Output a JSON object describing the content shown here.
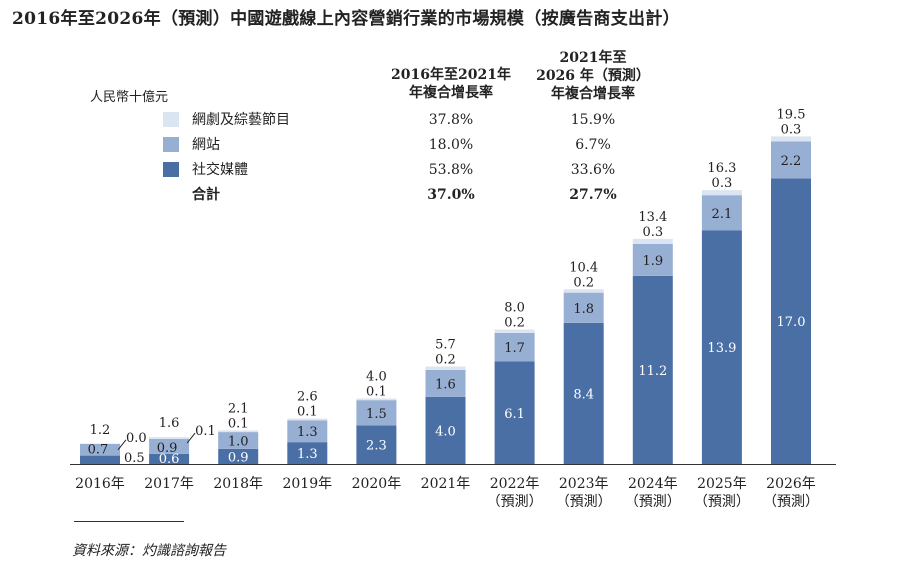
{
  "title": "2016年至2026年（預測）中國遊戲線上內容營銷行業的市場規模（按廣告商支出計）",
  "source": "資料來源：灼識諮詢報告",
  "colors": {
    "social": "#4a6fa5",
    "website": "#98afd4",
    "drama": "#dbe4f1",
    "text_on_dark": "#ffffff",
    "text": "#222222"
  },
  "chart_data": {
    "type": "bar",
    "stacked": true,
    "unit_label": "人民幣十億元",
    "categories": [
      [
        "2016年"
      ],
      [
        "2017年"
      ],
      [
        "2018年"
      ],
      [
        "2019年"
      ],
      [
        "2020年"
      ],
      [
        "2021年"
      ],
      [
        "2022年",
        "（預測）"
      ],
      [
        "2023年",
        "（預測）"
      ],
      [
        "2024年",
        "（預測）"
      ],
      [
        "2025年",
        "（預測）"
      ],
      [
        "2026年",
        "（預測）"
      ]
    ],
    "series": [
      {
        "name": "社交媒體",
        "color": "#4a6fa5",
        "values": [
          0.5,
          0.6,
          0.9,
          1.3,
          2.3,
          4.0,
          6.1,
          8.4,
          11.2,
          13.9,
          17.0
        ]
      },
      {
        "name": "網站",
        "color": "#98afd4",
        "values": [
          0.7,
          0.9,
          1.0,
          1.3,
          1.5,
          1.6,
          1.7,
          1.8,
          1.9,
          2.1,
          2.2
        ]
      },
      {
        "name": "網劇及綜藝節目",
        "color": "#dbe4f1",
        "values": [
          0.0,
          0.1,
          0.1,
          0.1,
          0.1,
          0.2,
          0.2,
          0.2,
          0.3,
          0.3,
          0.3
        ]
      }
    ],
    "totals": [
      1.2,
      1.6,
      2.1,
      2.6,
      4.0,
      5.7,
      8.0,
      10.4,
      13.4,
      16.3,
      19.5
    ],
    "ylim": [
      0,
      19.5
    ],
    "grid": false,
    "cagr_table": {
      "headers": [
        [
          "2016年至2021年",
          "年複合增長率"
        ],
        [
          "2021年至",
          "2026 年（預測）",
          "年複合增長率"
        ]
      ],
      "rows": [
        {
          "label": "網劇及綜藝節目",
          "swatch": "drama",
          "cagr1": "37.8%",
          "cagr2": "15.9%",
          "bold": false
        },
        {
          "label": "網站",
          "swatch": "website",
          "cagr1": "18.0%",
          "cagr2": "6.7%",
          "bold": false
        },
        {
          "label": "社交媒體",
          "swatch": "social",
          "cagr1": "53.8%",
          "cagr2": "33.6%",
          "bold": false
        },
        {
          "label": "合計",
          "swatch": "",
          "cagr1": "37.0%",
          "cagr2": "27.7%",
          "bold": true
        }
      ]
    }
  }
}
